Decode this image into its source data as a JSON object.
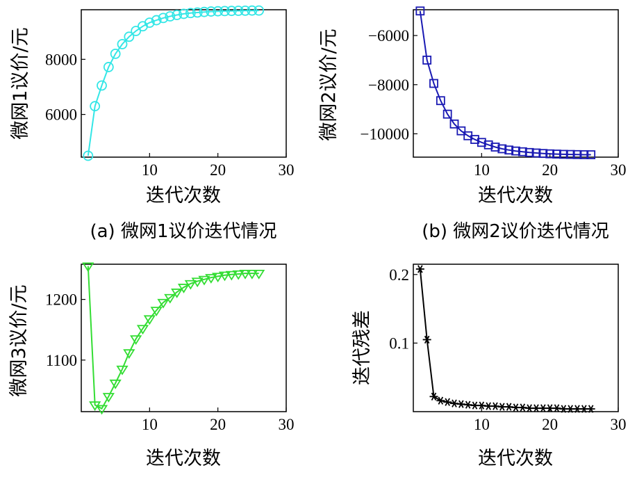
{
  "chart_data": [
    {
      "type": "line",
      "panel": "a",
      "caption": "(a) 微网1议价迭代情况",
      "xlabel": "迭代次数",
      "ylabel": "微网1议价/元",
      "xlim": [
        0,
        30
      ],
      "ylim": [
        4450,
        9800
      ],
      "xticks": [
        10,
        20,
        30
      ],
      "yticks": [
        6000,
        8000
      ],
      "xtick_labels": [
        "10",
        "20",
        "30"
      ],
      "ytick_labels": [
        "6000",
        "8000"
      ],
      "marker": "circle",
      "color": "#33e6e6",
      "series": [
        {
          "name": "微网1议价",
          "x": [
            1,
            2,
            3,
            4,
            5,
            6,
            7,
            8,
            9,
            10,
            11,
            12,
            13,
            14,
            15,
            16,
            17,
            18,
            19,
            20,
            21,
            22,
            23,
            24,
            25,
            26
          ],
          "y": [
            4500,
            6300,
            7050,
            7720,
            8200,
            8550,
            8820,
            9030,
            9200,
            9330,
            9420,
            9500,
            9560,
            9610,
            9650,
            9680,
            9700,
            9720,
            9735,
            9745,
            9752,
            9758,
            9762,
            9766,
            9770,
            9772
          ]
        }
      ]
    },
    {
      "type": "line",
      "panel": "b",
      "caption": "(b) 微网2议价迭代情况",
      "xlabel": "迭代次数",
      "ylabel": "微网2议价/元",
      "xlim": [
        0,
        30
      ],
      "ylim": [
        -10950,
        -4950
      ],
      "xticks": [
        10,
        20,
        30
      ],
      "yticks": [
        -10000,
        -8000,
        -6000
      ],
      "xtick_labels": [
        "10",
        "20",
        "30"
      ],
      "ytick_labels": [
        "−10000",
        "−8000",
        "−6000"
      ],
      "marker": "square",
      "color": "#1a1ab3",
      "series": [
        {
          "name": "微网2议价",
          "x": [
            1,
            2,
            3,
            4,
            5,
            6,
            7,
            8,
            9,
            10,
            11,
            12,
            13,
            14,
            15,
            16,
            17,
            18,
            19,
            20,
            21,
            22,
            23,
            24,
            25,
            26
          ],
          "y": [
            -5000,
            -7000,
            -7950,
            -8650,
            -9200,
            -9600,
            -9880,
            -10080,
            -10230,
            -10350,
            -10450,
            -10540,
            -10610,
            -10660,
            -10700,
            -10730,
            -10760,
            -10780,
            -10800,
            -10815,
            -10825,
            -10835,
            -10840,
            -10845,
            -10850,
            -10852
          ]
        }
      ]
    },
    {
      "type": "line",
      "panel": "c",
      "caption": "",
      "xlabel": "迭代次数",
      "ylabel": "微网3议价/元",
      "xlim": [
        0,
        30
      ],
      "ylim": [
        1015,
        1258
      ],
      "xticks": [
        10,
        20,
        30
      ],
      "yticks": [
        1100,
        1200
      ],
      "xtick_labels": [
        "10",
        "20",
        "30"
      ],
      "ytick_labels": [
        "1100",
        "1200"
      ],
      "marker": "triangle-down",
      "color": "#33dd33",
      "series": [
        {
          "name": "微网3议价",
          "x": [
            1,
            2,
            3,
            4,
            5,
            6,
            7,
            8,
            9,
            10,
            11,
            12,
            13,
            14,
            15,
            16,
            17,
            18,
            19,
            20,
            21,
            22,
            23,
            24,
            25,
            26
          ],
          "y": [
            1255,
            1026,
            1020,
            1040,
            1062,
            1085,
            1112,
            1135,
            1152,
            1168,
            1182,
            1195,
            1203,
            1212,
            1220,
            1226,
            1230,
            1233,
            1236,
            1238,
            1240,
            1241,
            1242,
            1243,
            1243,
            1243
          ]
        }
      ]
    },
    {
      "type": "line",
      "panel": "d",
      "caption": "",
      "xlabel": "迭代次数",
      "ylabel": "迭代残差",
      "xlim": [
        0,
        30
      ],
      "ylim": [
        0,
        0.215
      ],
      "xticks": [
        10,
        20,
        30
      ],
      "yticks": [
        0.1,
        0.2
      ],
      "xtick_labels": [
        "10",
        "20",
        "30"
      ],
      "ytick_labels": [
        "0.1",
        "0.2"
      ],
      "marker": "asterisk",
      "color": "#000000",
      "series": [
        {
          "name": "迭代残差",
          "x": [
            1,
            2,
            3,
            4,
            5,
            6,
            7,
            8,
            9,
            10,
            11,
            12,
            13,
            14,
            15,
            16,
            17,
            18,
            19,
            20,
            21,
            22,
            23,
            24,
            25,
            26
          ],
          "y": [
            0.208,
            0.105,
            0.022,
            0.016,
            0.014,
            0.012,
            0.011,
            0.01,
            0.009,
            0.009,
            0.008,
            0.008,
            0.007,
            0.007,
            0.006,
            0.006,
            0.005,
            0.005,
            0.005,
            0.005,
            0.005,
            0.004,
            0.004,
            0.004,
            0.004,
            0.004
          ]
        }
      ]
    }
  ]
}
